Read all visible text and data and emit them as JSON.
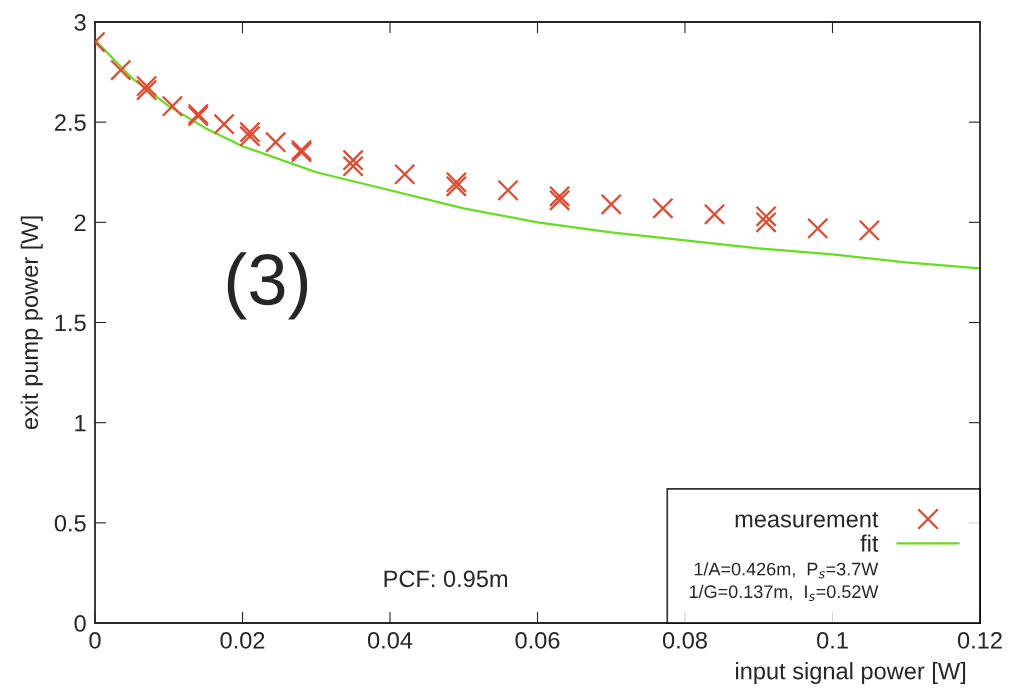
{
  "chart_data": {
    "type": "scatter",
    "xlabel": "input signal power [W]",
    "ylabel": "exit pump power [W]",
    "xlim": [
      0,
      0.12
    ],
    "xticks": [
      0,
      0.02,
      0.04,
      0.06,
      0.08,
      0.1,
      0.12
    ],
    "ylim": [
      0,
      3
    ],
    "yticks": [
      0,
      0.5,
      1,
      1.5,
      2,
      2.5,
      3
    ],
    "grid": false,
    "legend": "bottom right",
    "marker": "cross",
    "series": [
      {
        "name": "measurement",
        "color": "#e8472e",
        "x": [
          0,
          0.0035,
          0.007,
          0.007,
          0.0105,
          0.014,
          0.014,
          0.0175,
          0.021,
          0.021,
          0.0245,
          0.028,
          0.028,
          0.035,
          0.035,
          0.042,
          0.049,
          0.049,
          0.056,
          0.063,
          0.063,
          0.07,
          0.077,
          0.084,
          0.091,
          0.091,
          0.098,
          0.105
        ],
        "values": [
          2.9,
          2.76,
          2.68,
          2.66,
          2.58,
          2.54,
          2.53,
          2.49,
          2.45,
          2.43,
          2.4,
          2.36,
          2.35,
          2.31,
          2.28,
          2.24,
          2.2,
          2.18,
          2.16,
          2.13,
          2.11,
          2.09,
          2.07,
          2.04,
          2.03,
          2.0,
          1.97,
          1.96
        ]
      },
      {
        "name": "fit",
        "type": "line",
        "color": "#66dd22",
        "line_style": "solid",
        "marker": "none",
        "x": [
          0,
          0.005,
          0.01,
          0.015,
          0.02,
          0.03,
          0.04,
          0.05,
          0.06,
          0.07,
          0.08,
          0.09,
          0.1,
          0.11,
          0.12
        ],
        "values": [
          2.91,
          2.72,
          2.58,
          2.47,
          2.38,
          2.25,
          2.16,
          2.07,
          2.0,
          1.95,
          1.91,
          1.87,
          1.84,
          1.8,
          1.77
        ]
      }
    ],
    "annotations": [
      "1/A=0.426m,  P$_{s}$=3.7W",
      "1/G=0.137m,  I$_{s}$=0.52W",
      "(3)",
      "PCF: 0.95m"
    ]
  }
}
